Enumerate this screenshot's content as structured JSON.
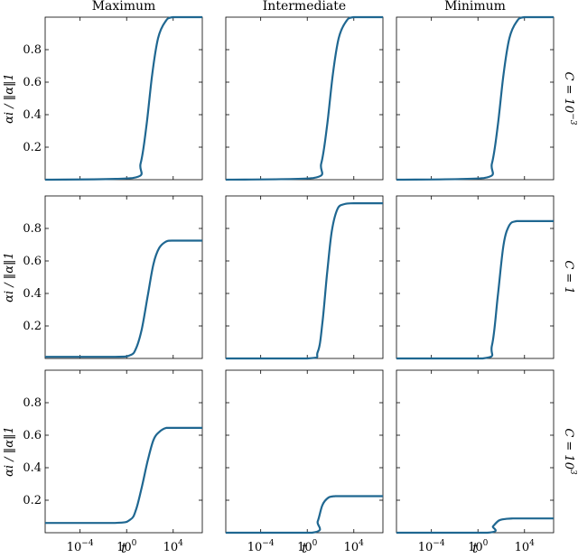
{
  "chart_data": {
    "type": "line",
    "column_titles": [
      "Maximum",
      "Intermediate",
      "Minimum"
    ],
    "row_labels": [
      "C = 10^-3",
      "C = 1",
      "C = 10^3"
    ],
    "row_labels_display": [
      {
        "base": "C = 10",
        "sup": "−3"
      },
      {
        "base": "C = 1",
        "sup": ""
      },
      {
        "base": "C = 10",
        "sup": "3"
      }
    ],
    "xlabel": "t",
    "ylabel": "αi / ‖α‖1",
    "x_scale": "log10",
    "xlim_log10": [
      -7,
      6.5
    ],
    "ylim": [
      0,
      1
    ],
    "yticks": [
      0.2,
      0.4,
      0.6,
      0.8
    ],
    "ytick_labels": [
      "0.2",
      "0.4",
      "0.6",
      "0.8"
    ],
    "xticks_log10": [
      -4,
      0,
      4
    ],
    "xtick_labels": [
      {
        "base": "10",
        "sup": "−4"
      },
      {
        "base": "10",
        "sup": "0"
      },
      {
        "base": "10",
        "sup": "4"
      }
    ],
    "line_color": "#1f6791",
    "panels": [
      {
        "row": 0,
        "col": 0,
        "series": [
          {
            "x_log10": [
              -7,
              0.5,
              1.2,
              1.7,
              2.2,
              2.7,
              3.3,
              4,
              6.5
            ],
            "y": [
              0.0,
              0.01,
              0.1,
              0.33,
              0.65,
              0.87,
              0.97,
              1.0,
              1.0
            ]
          }
        ]
      },
      {
        "row": 0,
        "col": 1,
        "series": [
          {
            "x_log10": [
              -7,
              0.5,
              1.2,
              1.7,
              2.2,
              2.7,
              3.3,
              4,
              6.5
            ],
            "y": [
              0.0,
              0.01,
              0.1,
              0.33,
              0.65,
              0.87,
              0.97,
              1.0,
              1.0
            ]
          }
        ]
      },
      {
        "row": 0,
        "col": 2,
        "series": [
          {
            "x_log10": [
              -7,
              0.5,
              1.2,
              1.7,
              2.2,
              2.7,
              3.3,
              4,
              6.5
            ],
            "y": [
              0.0,
              0.01,
              0.1,
              0.33,
              0.65,
              0.87,
              0.97,
              1.0,
              1.0
            ]
          }
        ]
      },
      {
        "row": 1,
        "col": 0,
        "series": [
          {
            "x_log10": [
              -7,
              -1,
              0.3,
              0.8,
              1.3,
              1.8,
              2.3,
              2.8,
              3.4,
              4,
              6.5
            ],
            "y": [
              0.01,
              0.01,
              0.02,
              0.06,
              0.18,
              0.38,
              0.58,
              0.68,
              0.72,
              0.725,
              0.725
            ]
          }
        ]
      },
      {
        "row": 1,
        "col": 1,
        "series": [
          {
            "x_log10": [
              -7,
              0,
              0.9,
              1.3,
              1.7,
              2.1,
              2.6,
              3.2,
              4,
              6.5
            ],
            "y": [
              0.0,
              0.0,
              0.04,
              0.22,
              0.52,
              0.78,
              0.92,
              0.95,
              0.955,
              0.955
            ]
          }
        ]
      },
      {
        "row": 1,
        "col": 2,
        "series": [
          {
            "x_log10": [
              -7,
              0.4,
              1.2,
              1.7,
              2.2,
              2.7,
              3.3,
              4,
              6.5
            ],
            "y": [
              0.0,
              0.0,
              0.08,
              0.38,
              0.7,
              0.82,
              0.845,
              0.845,
              0.845
            ]
          }
        ]
      },
      {
        "row": 2,
        "col": 0,
        "series": [
          {
            "x_log10": [
              -7,
              -1,
              0.3,
              0.8,
              1.3,
              1.8,
              2.3,
              2.8,
              3.4,
              4,
              6.5
            ],
            "y": [
              0.06,
              0.06,
              0.08,
              0.14,
              0.28,
              0.44,
              0.57,
              0.62,
              0.645,
              0.645,
              0.645
            ]
          }
        ]
      },
      {
        "row": 2,
        "col": 1,
        "series": [
          {
            "x_log10": [
              -7,
              0.4,
              0.9,
              1.3,
              1.8,
              2.4,
              3,
              4,
              6.5
            ],
            "y": [
              0.0,
              0.0,
              0.07,
              0.17,
              0.215,
              0.225,
              0.225,
              0.225,
              0.225
            ]
          }
        ]
      },
      {
        "row": 2,
        "col": 2,
        "series": [
          {
            "x_log10": [
              -7,
              0.8,
              1.3,
              1.8,
              2.4,
              3,
              4,
              6.5
            ],
            "y": [
              0.0,
              0.0,
              0.04,
              0.075,
              0.085,
              0.088,
              0.088,
              0.088
            ]
          }
        ]
      }
    ]
  }
}
